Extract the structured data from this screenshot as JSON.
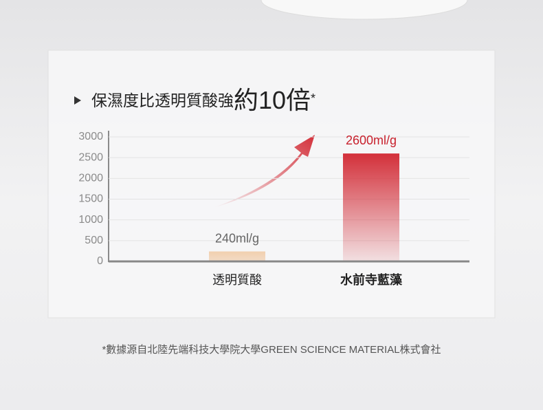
{
  "chart_data": {
    "type": "bar",
    "title": [
      "保濕度比透明質酸強",
      "約10倍",
      "*"
    ],
    "categories": [
      "透明質酸",
      "水前寺藍藻"
    ],
    "values": [
      240,
      2600
    ],
    "value_labels": [
      "240ml/g",
      "2600ml/g"
    ],
    "colors": [
      "#f1cfae",
      "#d3303a"
    ],
    "ylim": [
      0,
      3000
    ],
    "yticks": [
      0,
      500,
      1000,
      1500,
      2000,
      2500,
      3000
    ],
    "grid": true,
    "footnote": "*數據源自北陸先端科技大學院大學GREEN SCIENCE MATERIAL株式會社"
  }
}
